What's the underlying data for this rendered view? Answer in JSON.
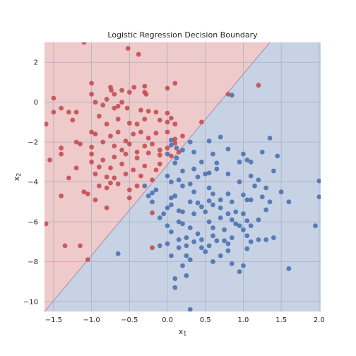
{
  "chart_data": {
    "type": "scatter",
    "title": "Logistic Regression Decision Boundary",
    "xlabel": "x",
    "xlabel_sub": "1",
    "ylabel": "x",
    "ylabel_sub": "2",
    "xlim": [
      -1.62,
      2.02
    ],
    "ylim": [
      -10.5,
      3.0
    ],
    "xticks": [
      "−1.5",
      "−1.0",
      "−0.5",
      "0.0",
      "0.5",
      "1.0",
      "1.5",
      "2.0"
    ],
    "xtick_values": [
      -1.5,
      -1.0,
      -0.5,
      0.0,
      0.5,
      1.0,
      1.5,
      2.0
    ],
    "yticks": [
      "2",
      "0",
      "−2",
      "−4",
      "−6",
      "−8",
      "−10"
    ],
    "ytick_values": [
      2,
      0,
      -2,
      -4,
      -6,
      -8,
      -10
    ],
    "grid": true,
    "decision_boundary": {
      "x": [
        -1.62,
        1.35
      ],
      "y": [
        -10.5,
        3.0
      ]
    },
    "region_colors": {
      "class_0": "#eecaca",
      "class_1": "#c7d2e5"
    },
    "grid_color": "#9aa5bd",
    "series": [
      {
        "color": "#c44e52",
        "points": [
          [
            -1.1,
            3.0
          ],
          [
            -0.52,
            2.7
          ],
          [
            -0.38,
            2.4
          ],
          [
            -1.0,
            0.95
          ],
          [
            -0.3,
            0.8
          ],
          [
            -0.75,
            0.75
          ],
          [
            -0.44,
            0.75
          ],
          [
            -1.0,
            0.4
          ],
          [
            -0.74,
            0.6
          ],
          [
            -0.6,
            0.6
          ],
          [
            0.0,
            0.7
          ],
          [
            0.1,
            0.95
          ],
          [
            -0.7,
            0.4
          ],
          [
            -0.5,
            0.5
          ],
          [
            -0.3,
            0.5
          ],
          [
            -0.28,
            0.4
          ],
          [
            -0.8,
            0.15
          ],
          [
            -0.6,
            0.0
          ],
          [
            -0.95,
            0.0
          ],
          [
            -1.5,
            0.2
          ],
          [
            -1.4,
            -0.3
          ],
          [
            -1.3,
            -0.5
          ],
          [
            -1.2,
            -0.5
          ],
          [
            -0.85,
            -0.15
          ],
          [
            -0.7,
            -0.3
          ],
          [
            -0.65,
            -0.2
          ],
          [
            -0.53,
            -0.3
          ],
          [
            -0.35,
            -0.4
          ],
          [
            -0.25,
            -0.45
          ],
          [
            -0.15,
            -0.5
          ],
          [
            0.0,
            -0.55
          ],
          [
            -0.9,
            -0.7
          ],
          [
            -1.5,
            -0.5
          ],
          [
            -1.6,
            -1.1
          ],
          [
            -1.25,
            -0.9
          ],
          [
            -0.8,
            -1.1
          ],
          [
            -0.65,
            -0.85
          ],
          [
            -0.5,
            -1.05
          ],
          [
            -0.4,
            -1.1
          ],
          [
            -0.3,
            -0.85
          ],
          [
            -0.1,
            -0.9
          ],
          [
            0.0,
            -1.0
          ],
          [
            0.1,
            -1.1
          ],
          [
            0.05,
            -0.8
          ],
          [
            -1.2,
            -2.0
          ],
          [
            -1.0,
            -1.5
          ],
          [
            -0.95,
            -1.6
          ],
          [
            -0.75,
            -1.7
          ],
          [
            -0.65,
            -1.5
          ],
          [
            -0.55,
            -1.95
          ],
          [
            -0.45,
            -1.6
          ],
          [
            -0.35,
            -1.5
          ],
          [
            -0.25,
            -1.8
          ],
          [
            -0.15,
            -1.55
          ],
          [
            0.0,
            -1.5
          ],
          [
            0.1,
            -1.85
          ],
          [
            0.2,
            -1.7
          ],
          [
            -1.15,
            -2.1
          ],
          [
            -1.0,
            -2.25
          ],
          [
            -0.85,
            -2.0
          ],
          [
            -0.7,
            -2.2
          ],
          [
            -0.6,
            -2.4
          ],
          [
            -0.5,
            -2.1
          ],
          [
            -0.4,
            -2.5
          ],
          [
            -0.3,
            -2.2
          ],
          [
            -0.2,
            -2.1
          ],
          [
            -0.1,
            -2.4
          ],
          [
            0.0,
            -2.3
          ],
          [
            0.1,
            -2.05
          ],
          [
            0.15,
            -2.5
          ],
          [
            -1.4,
            -2.3
          ],
          [
            -1.4,
            -2.6
          ],
          [
            -1.55,
            -2.9
          ],
          [
            -1.0,
            -2.6
          ],
          [
            -0.85,
            -2.9
          ],
          [
            -0.7,
            -2.75
          ],
          [
            -0.55,
            -2.6
          ],
          [
            -0.4,
            -2.8
          ],
          [
            -0.25,
            -2.55
          ],
          [
            -0.1,
            -2.65
          ],
          [
            0.05,
            -2.7
          ],
          [
            -1.2,
            -3.3
          ],
          [
            -1.0,
            -3.0
          ],
          [
            -0.9,
            -3.25
          ],
          [
            -0.75,
            -3.3
          ],
          [
            -0.6,
            -3.1
          ],
          [
            -0.45,
            -3.4
          ],
          [
            -0.3,
            -3.2
          ],
          [
            -0.15,
            -3.4
          ],
          [
            -0.1,
            -3.1
          ],
          [
            -1.3,
            -3.8
          ],
          [
            -0.95,
            -3.6
          ],
          [
            -0.8,
            -3.75
          ],
          [
            -0.7,
            -3.8
          ],
          [
            -0.55,
            -3.6
          ],
          [
            -0.35,
            -3.7
          ],
          [
            -0.2,
            -3.9
          ],
          [
            -1.1,
            -4.5
          ],
          [
            -1.05,
            -4.6
          ],
          [
            -0.9,
            -4.2
          ],
          [
            -0.8,
            -4.3
          ],
          [
            -0.75,
            -4.05
          ],
          [
            -0.65,
            -4.1
          ],
          [
            -0.5,
            -4.4
          ],
          [
            -0.4,
            -4.2
          ],
          [
            -1.4,
            -4.7
          ],
          [
            -0.95,
            -4.9
          ],
          [
            -0.8,
            -5.3
          ],
          [
            -0.5,
            -4.8
          ],
          [
            -0.2,
            -5.55
          ],
          [
            -1.6,
            -6.1
          ],
          [
            -1.35,
            -7.2
          ],
          [
            -1.15,
            -7.2
          ],
          [
            -1.05,
            -7.9
          ],
          [
            -0.2,
            -7.3
          ],
          [
            0.8,
            0.4
          ],
          [
            1.2,
            0.85
          ],
          [
            0.45,
            -1.0
          ]
        ]
      },
      {
        "color": "#4c72b0",
        "points": [
          [
            0.85,
            0.35
          ],
          [
            0.05,
            -1.9
          ],
          [
            0.12,
            -2.3
          ],
          [
            0.3,
            -2.0
          ],
          [
            0.0,
            -2.6
          ],
          [
            0.12,
            -2.8
          ],
          [
            0.35,
            -2.5
          ],
          [
            0.45,
            -3.0
          ],
          [
            0.1,
            -3.05
          ],
          [
            0.2,
            -3.45
          ],
          [
            0.0,
            -3.7
          ],
          [
            0.05,
            -4.0
          ],
          [
            0.15,
            -3.9
          ],
          [
            0.2,
            -4.2
          ],
          [
            0.5,
            -3.6
          ],
          [
            0.55,
            -3.55
          ],
          [
            0.3,
            -4.1
          ],
          [
            0.35,
            -4.5
          ],
          [
            0.55,
            -4.3
          ],
          [
            0.3,
            -5.0
          ],
          [
            0.45,
            -5.25
          ],
          [
            0.6,
            -4.6
          ],
          [
            0.6,
            -5.15
          ],
          [
            0.7,
            -4.9
          ],
          [
            0.8,
            -4.6
          ],
          [
            0.85,
            -5.0
          ],
          [
            0.5,
            -5.5
          ],
          [
            0.35,
            -5.6
          ],
          [
            0.2,
            -5.5
          ],
          [
            0.0,
            -5.3
          ],
          [
            -0.05,
            -5.6
          ],
          [
            -0.1,
            -5.8
          ],
          [
            -0.2,
            -5.0
          ],
          [
            -0.25,
            -4.7
          ],
          [
            -0.3,
            -4.2
          ],
          [
            -0.15,
            -4.4
          ],
          [
            0.05,
            -4.8
          ],
          [
            0.0,
            -6.2
          ],
          [
            0.05,
            -6.5
          ],
          [
            0.2,
            -6.1
          ],
          [
            0.3,
            -6.3
          ],
          [
            0.4,
            -6.6
          ],
          [
            0.55,
            -6.0
          ],
          [
            0.7,
            -5.8
          ],
          [
            0.8,
            -5.6
          ],
          [
            0.9,
            -5.5
          ],
          [
            1.0,
            -5.6
          ],
          [
            1.05,
            -5.95
          ],
          [
            1.1,
            -6.2
          ],
          [
            0.95,
            -6.2
          ],
          [
            0.75,
            -6.4
          ],
          [
            0.6,
            -6.7
          ],
          [
            0.45,
            -6.9
          ],
          [
            0.35,
            -7.0
          ],
          [
            0.25,
            -7.2
          ],
          [
            0.15,
            -7.3
          ],
          [
            0.0,
            -7.1
          ],
          [
            0.05,
            -7.7
          ],
          [
            0.25,
            -7.7
          ],
          [
            0.5,
            -7.5
          ],
          [
            0.55,
            -7.2
          ],
          [
            0.7,
            -7.7
          ],
          [
            0.85,
            -8.1
          ],
          [
            0.95,
            -8.5
          ],
          [
            1.0,
            -8.2
          ],
          [
            1.1,
            -7.0
          ],
          [
            1.2,
            -6.9
          ],
          [
            1.3,
            -6.9
          ],
          [
            0.8,
            -7.1
          ],
          [
            0.85,
            -6.8
          ],
          [
            0.6,
            -8.0
          ],
          [
            0.2,
            -8.2
          ],
          [
            0.25,
            -8.7
          ],
          [
            0.1,
            -8.85
          ],
          [
            0.1,
            -9.3
          ],
          [
            0.3,
            -10.4
          ],
          [
            -0.65,
            -7.6
          ],
          [
            -0.1,
            -7.2
          ],
          [
            0.95,
            -4.0
          ],
          [
            0.8,
            -3.6
          ],
          [
            0.95,
            -3.0
          ],
          [
            1.1,
            -3.0
          ],
          [
            1.0,
            -2.6
          ],
          [
            1.05,
            -2.9
          ],
          [
            1.25,
            -2.5
          ],
          [
            1.35,
            -1.8
          ],
          [
            1.45,
            -2.7
          ],
          [
            1.4,
            -3.45
          ],
          [
            1.2,
            -3.9
          ],
          [
            1.1,
            -3.7
          ],
          [
            1.15,
            -4.2
          ],
          [
            1.3,
            -4.3
          ],
          [
            1.25,
            -4.75
          ],
          [
            1.35,
            -5.0
          ],
          [
            1.1,
            -4.9
          ],
          [
            1.0,
            -4.65
          ],
          [
            1.05,
            -4.9
          ],
          [
            1.5,
            -4.5
          ],
          [
            1.6,
            -5.0
          ],
          [
            1.3,
            -5.4
          ],
          [
            1.2,
            -5.9
          ],
          [
            1.0,
            -6.4
          ],
          [
            1.05,
            -6.7
          ],
          [
            1.4,
            -6.8
          ],
          [
            1.6,
            -8.35
          ],
          [
            1.95,
            -6.2
          ],
          [
            2.0,
            -3.95
          ],
          [
            2.0,
            -4.75
          ],
          [
            0.55,
            -1.95
          ],
          [
            0.7,
            -1.75
          ],
          [
            0.8,
            -2.35
          ],
          [
            0.6,
            -2.6
          ],
          [
            0.65,
            -3.05
          ],
          [
            0.65,
            -3.35
          ],
          [
            0.2,
            -2.4
          ],
          [
            0.05,
            -2.15
          ],
          [
            0.15,
            -6.0
          ],
          [
            0.25,
            -6.8
          ],
          [
            0.4,
            -5.05
          ],
          [
            0.7,
            -5.3
          ],
          [
            0.85,
            -5.9
          ],
          [
            0.9,
            -6.1
          ],
          [
            0.75,
            -6.95
          ],
          [
            0.35,
            -3.35
          ],
          [
            0.4,
            -3.75
          ],
          [
            0.1,
            -4.7
          ],
          [
            -0.2,
            -4.55
          ],
          [
            0.05,
            -5.15
          ],
          [
            0.15,
            -5.45
          ],
          [
            0.55,
            -4.95
          ],
          [
            0.6,
            -6.3
          ],
          [
            0.65,
            -6.95
          ],
          [
            0.45,
            -7.3
          ],
          [
            0.3,
            -7.9
          ],
          [
            0.15,
            -6.9
          ],
          [
            1.05,
            -7.35
          ],
          [
            0.8,
            -7.45
          ]
        ]
      }
    ]
  }
}
